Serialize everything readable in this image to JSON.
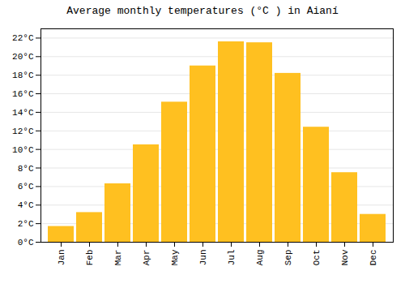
{
  "chart_data": {
    "type": "bar",
    "title": "Average monthly temperatures (°C ) in Aianí",
    "categories": [
      "Jan",
      "Feb",
      "Mar",
      "Apr",
      "May",
      "Jun",
      "Jul",
      "Aug",
      "Sep",
      "Oct",
      "Nov",
      "Dec"
    ],
    "values": [
      1.7,
      3.2,
      6.3,
      10.5,
      15.1,
      19.0,
      21.6,
      21.5,
      18.2,
      12.4,
      7.5,
      3.0
    ],
    "color": "#FFC020",
    "ylim": [
      0,
      23
    ],
    "yticks": [
      {
        "value": 0,
        "label": "0°C"
      },
      {
        "value": 2,
        "label": "2°C"
      },
      {
        "value": 4,
        "label": "4°C"
      },
      {
        "value": 6,
        "label": "6°C"
      },
      {
        "value": 8,
        "label": "8°C"
      },
      {
        "value": 10,
        "label": "10°C"
      },
      {
        "value": 12,
        "label": "12°C"
      },
      {
        "value": 14,
        "label": "14°C"
      },
      {
        "value": 16,
        "label": "16°C"
      },
      {
        "value": 18,
        "label": "18°C"
      },
      {
        "value": 20,
        "label": "20°C"
      },
      {
        "value": 22,
        "label": "22°C"
      }
    ],
    "grid": true
  }
}
